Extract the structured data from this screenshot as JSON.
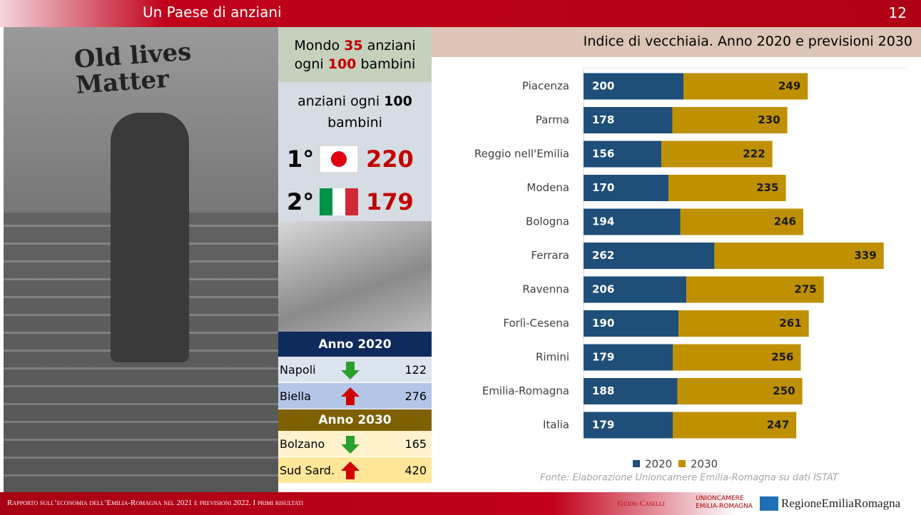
{
  "header": {
    "title": "Un Paese di anziani",
    "page": "12"
  },
  "photo": {
    "graffiti": "Old lives Matter"
  },
  "world": {
    "prefix": "Mondo",
    "value": "35",
    "middle": "anziani",
    "line2_prefix": "ogni",
    "value2": "100",
    "suffix": "bambini"
  },
  "ranking": {
    "heading_prefix": "anziani ogni",
    "heading_value": "100",
    "heading_suffix": "bambini",
    "rows": [
      {
        "rank": "1°",
        "value": "220"
      },
      {
        "rank": "2°",
        "value": "179"
      }
    ]
  },
  "table": {
    "sections": [
      {
        "title": "Anno 2020",
        "rows": [
          [
            "Napoli",
            "122"
          ],
          [
            "Biella",
            "276"
          ]
        ]
      },
      {
        "title": "Anno 2030",
        "rows": [
          [
            "Bolzano",
            "165"
          ],
          [
            "Sud Sard.",
            "420"
          ]
        ]
      }
    ]
  },
  "chart_data": {
    "type": "stacked-bar-horizontal",
    "title": "Indice di vecchiaia. Anno 2020 e previsioni 2030",
    "categories": [
      "Piacenza",
      "Parma",
      "Reggio nell'Emilia",
      "Modena",
      "Bologna",
      "Ferrara",
      "Ravenna",
      "Forlì-Cesena",
      "Rimini",
      "Emilia-Romagna",
      "Italia"
    ],
    "series": [
      {
        "name": "2020",
        "color": "#1f4e79",
        "values": [
          200,
          178,
          156,
          170,
          194,
          262,
          206,
          190,
          179,
          188,
          179
        ]
      },
      {
        "name": "2030",
        "color": "#bf9000",
        "values": [
          249,
          230,
          222,
          235,
          246,
          339,
          275,
          261,
          256,
          250,
          247
        ]
      }
    ],
    "legend": "bottom",
    "source": "Fonte: Elaborazione Unioncamere Emilia-Romagna su dati ISTAT"
  },
  "footer": {
    "text": "Rapporto sull’economia dell’Emilia-Romagna nel 2021 e previsioni 2022. I primi risultati",
    "author": "Guido Caselli",
    "logo1": "UNIONCAMERE EMILIA-ROMAGNA",
    "logo2": "RegioneEmiliaRomagna"
  }
}
